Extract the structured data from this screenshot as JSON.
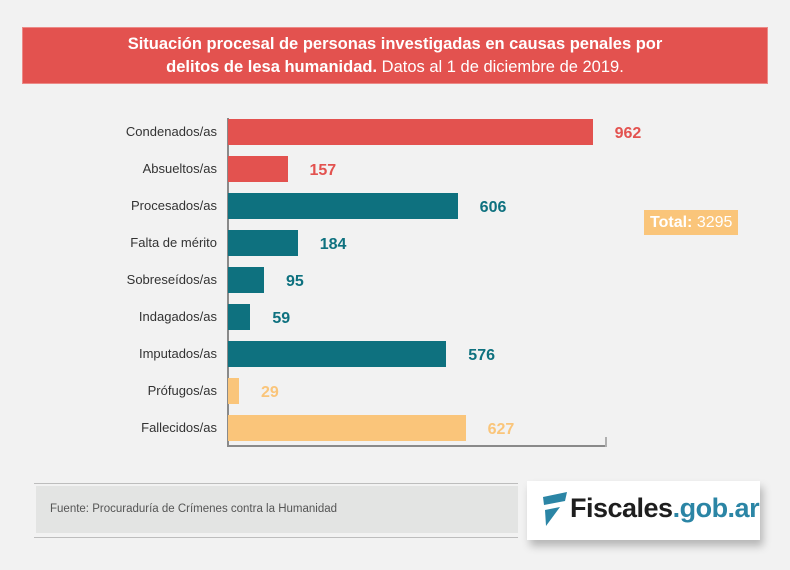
{
  "header": {
    "title_bold_line1": "Situación procesal de personas investigadas en  causas penales por",
    "title_bold_line2": "delitos de lesa humanidad.",
    "title_regular": " Datos al 1 de diciembre de 2019."
  },
  "chart_data": {
    "type": "bar",
    "orientation": "horizontal",
    "title": "Situación procesal de personas investigadas en causas penales por delitos de lesa humanidad. Datos al 1 de diciembre de 2019.",
    "xlabel": "",
    "ylabel": "",
    "xlim": [
      0,
      1000
    ],
    "grid": false,
    "categories": [
      "Condenados/as",
      "Absueltos/as",
      "Procesados/as",
      "Falta de mérito",
      "Sobreseídos/as",
      "Indagados/as",
      "Imputados/as",
      "Prófugos/as",
      "Fallecidos/as"
    ],
    "values": [
      962,
      157,
      606,
      184,
      95,
      59,
      576,
      29,
      627
    ],
    "colors": [
      "#e3524f",
      "#e3524f",
      "#0e717f",
      "#0e717f",
      "#0e717f",
      "#0e717f",
      "#0e717f",
      "#fac57a",
      "#fac57a"
    ],
    "annotations": [
      {
        "text_bold": "Total:",
        "text": "3295",
        "color": "#fac57a",
        "position": "right"
      }
    ]
  },
  "total": {
    "label": "Total:",
    "value": "3295"
  },
  "footer": {
    "source": "Fuente: Procuraduría de Crímenes contra la Humanidad",
    "logo_dark": "Fiscales",
    "logo_blue": ".gob.ar"
  },
  "colors": {
    "red": "#e3524f",
    "teal": "#0e717f",
    "orange": "#fac57a",
    "logo_blue": "#2b85a5"
  }
}
